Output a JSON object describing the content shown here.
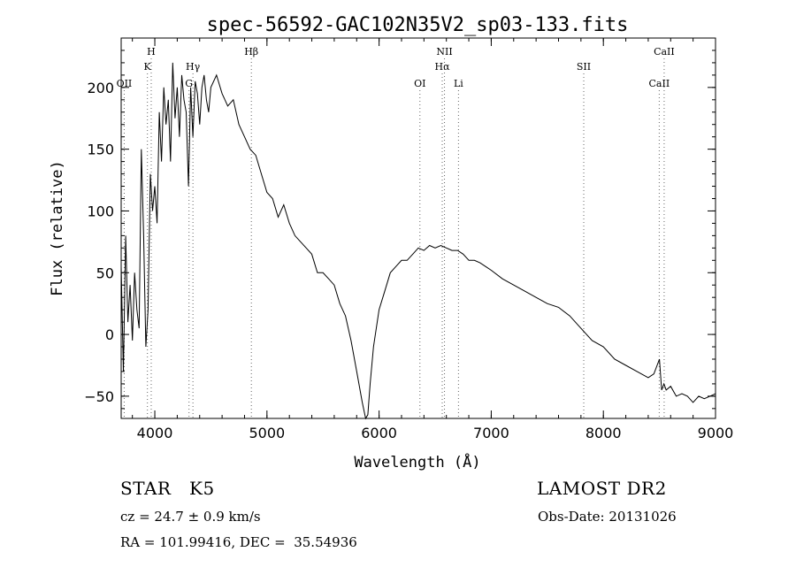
{
  "chart_data": {
    "type": "line",
    "title": "spec-56592-GAC102N35V2_sp03-133.fits",
    "xlabel": "Wavelength (Å)",
    "ylabel": "Flux (relative)",
    "xlim": [
      3700,
      9000
    ],
    "ylim": [
      -68,
      240
    ],
    "x_major_ticks": [
      4000,
      5000,
      6000,
      7000,
      8000,
      9000
    ],
    "x_tick_labels": [
      "4000",
      "5000",
      "6000",
      "7000",
      "8000",
      "9000"
    ],
    "x_minor_step": 200,
    "y_major_ticks": [
      -50,
      0,
      50,
      100,
      150,
      200
    ],
    "y_tick_labels": [
      "−50",
      "0",
      "50",
      "100",
      "150",
      "200"
    ],
    "y_minor_step": 10,
    "grid": false,
    "line_color": "#000000",
    "spectral_lines": [
      {
        "label": "OII",
        "wavelength": 3727,
        "row": 3
      },
      {
        "label": "H",
        "wavelength": 3968,
        "row": 1
      },
      {
        "label": "K",
        "wavelength": 3934,
        "row": 2
      },
      {
        "label": "Hγ",
        "wavelength": 4340,
        "row": 2
      },
      {
        "label": "G",
        "wavelength": 4305,
        "row": 3
      },
      {
        "label": "Hβ",
        "wavelength": 4861,
        "row": 1
      },
      {
        "label": "OI",
        "wavelength": 6364,
        "row": 3
      },
      {
        "label": "NII",
        "wavelength": 6583,
        "row": 1
      },
      {
        "label": "Hα",
        "wavelength": 6563,
        "row": 2
      },
      {
        "label": "Li",
        "wavelength": 6708,
        "row": 3
      },
      {
        "label": "SII",
        "wavelength": 7825,
        "row": 2
      },
      {
        "label": "CaII",
        "wavelength": 8542,
        "row": 1
      },
      {
        "label": "CaII",
        "wavelength": 8498,
        "row": 3
      }
    ],
    "series": [
      {
        "x": [
          3700,
          3720,
          3740,
          3760,
          3780,
          3800,
          3820,
          3840,
          3860,
          3880,
          3900,
          3920,
          3940,
          3960,
          3980,
          4000,
          4020,
          4040,
          4060,
          4080,
          4100,
          4120,
          4140,
          4160,
          4180,
          4200,
          4220,
          4240,
          4260,
          4280,
          4300,
          4320,
          4340,
          4360,
          4380,
          4400,
          4420,
          4440,
          4460,
          4480,
          4500,
          4550,
          4600,
          4650,
          4700,
          4750,
          4800,
          4850,
          4900,
          4950,
          5000,
          5050,
          5100,
          5150,
          5200,
          5250,
          5300,
          5350,
          5400,
          5450,
          5500,
          5550,
          5600,
          5650,
          5700,
          5750,
          5800,
          5850,
          5880,
          5900,
          5920,
          5950,
          6000,
          6050,
          6100,
          6150,
          6200,
          6250,
          6300,
          6350,
          6400,
          6450,
          6500,
          6550,
          6600,
          6650,
          6700,
          6750,
          6800,
          6850,
          6900,
          6950,
          7000,
          7100,
          7200,
          7300,
          7400,
          7500,
          7600,
          7700,
          7800,
          7900,
          8000,
          8100,
          8200,
          8300,
          8400,
          8450,
          8500,
          8520,
          8540,
          8560,
          8600,
          8650,
          8700,
          8750,
          8800,
          8850,
          8900,
          8950,
          9000
        ],
        "y": [
          55,
          -30,
          80,
          10,
          40,
          -5,
          50,
          20,
          5,
          150,
          80,
          -10,
          20,
          130,
          100,
          120,
          90,
          180,
          140,
          200,
          170,
          190,
          140,
          220,
          175,
          200,
          160,
          210,
          190,
          180,
          120,
          200,
          160,
          205,
          195,
          170,
          200,
          210,
          190,
          180,
          200,
          210,
          195,
          185,
          190,
          170,
          160,
          150,
          145,
          130,
          115,
          110,
          95,
          105,
          90,
          80,
          75,
          70,
          65,
          50,
          50,
          45,
          40,
          25,
          15,
          -5,
          -30,
          -55,
          -70,
          -65,
          -40,
          -10,
          20,
          35,
          50,
          55,
          60,
          60,
          65,
          70,
          68,
          72,
          70,
          72,
          70,
          68,
          68,
          65,
          60,
          60,
          58,
          55,
          52,
          45,
          40,
          35,
          30,
          25,
          22,
          15,
          5,
          -5,
          -10,
          -20,
          -25,
          -30,
          -35,
          -32,
          -20,
          -45,
          -40,
          -45,
          -42,
          -50,
          -48,
          -50,
          -55,
          -50,
          -52,
          -50,
          -48
        ]
      }
    ]
  },
  "info": {
    "object_line": "STAR   K5",
    "survey": "LAMOST DR2",
    "cz": "cz = 24.7 ± 0.9 km/s",
    "obs_date": "Obs-Date: 20131026",
    "coords": "RA = 101.99416, DEC =  35.54936"
  }
}
